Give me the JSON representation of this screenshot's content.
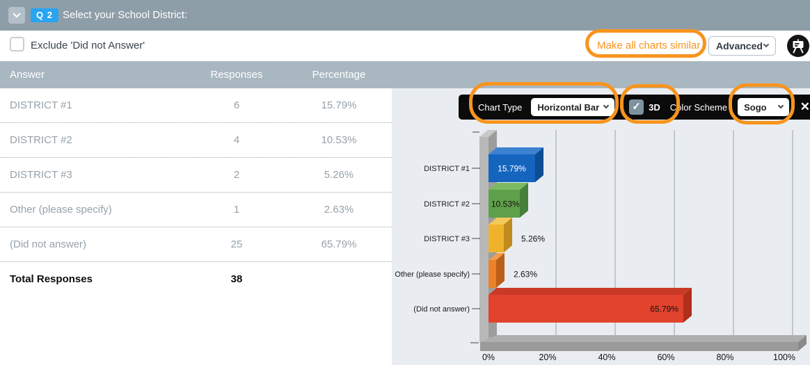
{
  "header": {
    "question_badge": "Q 2",
    "title": "Select your School District:"
  },
  "subheader": {
    "exclude_label": "Exclude 'Did not Answer'",
    "exclude_checked": false,
    "make_similar_label": "Make all charts similar",
    "advanced_label": "Advanced"
  },
  "table": {
    "columns": [
      "Answer",
      "Responses",
      "Percentage"
    ],
    "rows": [
      {
        "answer": "DISTRICT #1",
        "responses": "6",
        "percentage": "15.79%"
      },
      {
        "answer": "DISTRICT #2",
        "responses": "4",
        "percentage": "10.53%"
      },
      {
        "answer": "DISTRICT #3",
        "responses": "2",
        "percentage": "5.26%"
      },
      {
        "answer": "Other (please specify)",
        "responses": "1",
        "percentage": "2.63%"
      },
      {
        "answer": "(Did not answer)",
        "responses": "25",
        "percentage": "65.79%"
      }
    ],
    "total_label": "Total Responses",
    "total_value": "38"
  },
  "chart_toolbar": {
    "chart_type_label": "Chart Type",
    "chart_type_value": "Horizontal Bar",
    "three_d_label": "3D",
    "three_d_checked": true,
    "color_scheme_label": "Color Scheme",
    "color_scheme_value": "Sogo"
  },
  "chart_data": {
    "type": "bar",
    "orientation": "horizontal",
    "is_3d": true,
    "title": "",
    "categories": [
      "DISTRICT #1",
      "DISTRICT #2",
      "DISTRICT #3",
      "Other (please specify)",
      "(Did not answer)"
    ],
    "values": [
      15.79,
      10.53,
      5.26,
      2.63,
      65.79
    ],
    "x_ticks": [
      "0%",
      "20%",
      "40%",
      "60%",
      "80%",
      "100%"
    ],
    "xlim": [
      0,
      100
    ],
    "grid": true,
    "bars": [
      {
        "category": "DISTRICT #1",
        "value": 15.79,
        "label": "15.79%",
        "color": "#1565BF",
        "color_top": "#3C82D2",
        "color_side": "#0E4C94",
        "label_color": "#FFFFFF",
        "label_pos": "center"
      },
      {
        "category": "DISTRICT #2",
        "value": 10.53,
        "label": "10.53%",
        "color": "#5FA04A",
        "color_top": "#7CB961",
        "color_side": "#47803A",
        "label_color": "#111111",
        "label_pos": "inside-left"
      },
      {
        "category": "DISTRICT #3",
        "value": 5.26,
        "label": "5.26%",
        "color": "#EFB32B",
        "color_top": "#F3C95C",
        "color_side": "#C08A1D",
        "label_color": "#111111",
        "label_pos": "outside"
      },
      {
        "category": "Other (please specify)",
        "value": 2.63,
        "label": "2.63%",
        "color": "#EC8129",
        "color_top": "#F19C4F",
        "color_side": "#BA5F18",
        "label_color": "#111111",
        "label_pos": "outside"
      },
      {
        "category": "(Did not answer)",
        "value": 65.79,
        "label": "65.79%",
        "color": "#E2432C",
        "color_top": "#C93A25",
        "color_side": "#B02F1B",
        "label_color": "#111111",
        "label_pos": "inside-right"
      }
    ]
  },
  "icons": {
    "close_glyph": "✕",
    "check_glyph": "✓"
  },
  "colors": {
    "annotation_orange": "#F7941E",
    "question_badge_blue": "#29A4F1",
    "header_gray": "#8E9EA8",
    "table_header_gray": "#A9B7C1",
    "chart_background": "#E9EDF1",
    "toolbar_black": "#0B0B0B"
  }
}
